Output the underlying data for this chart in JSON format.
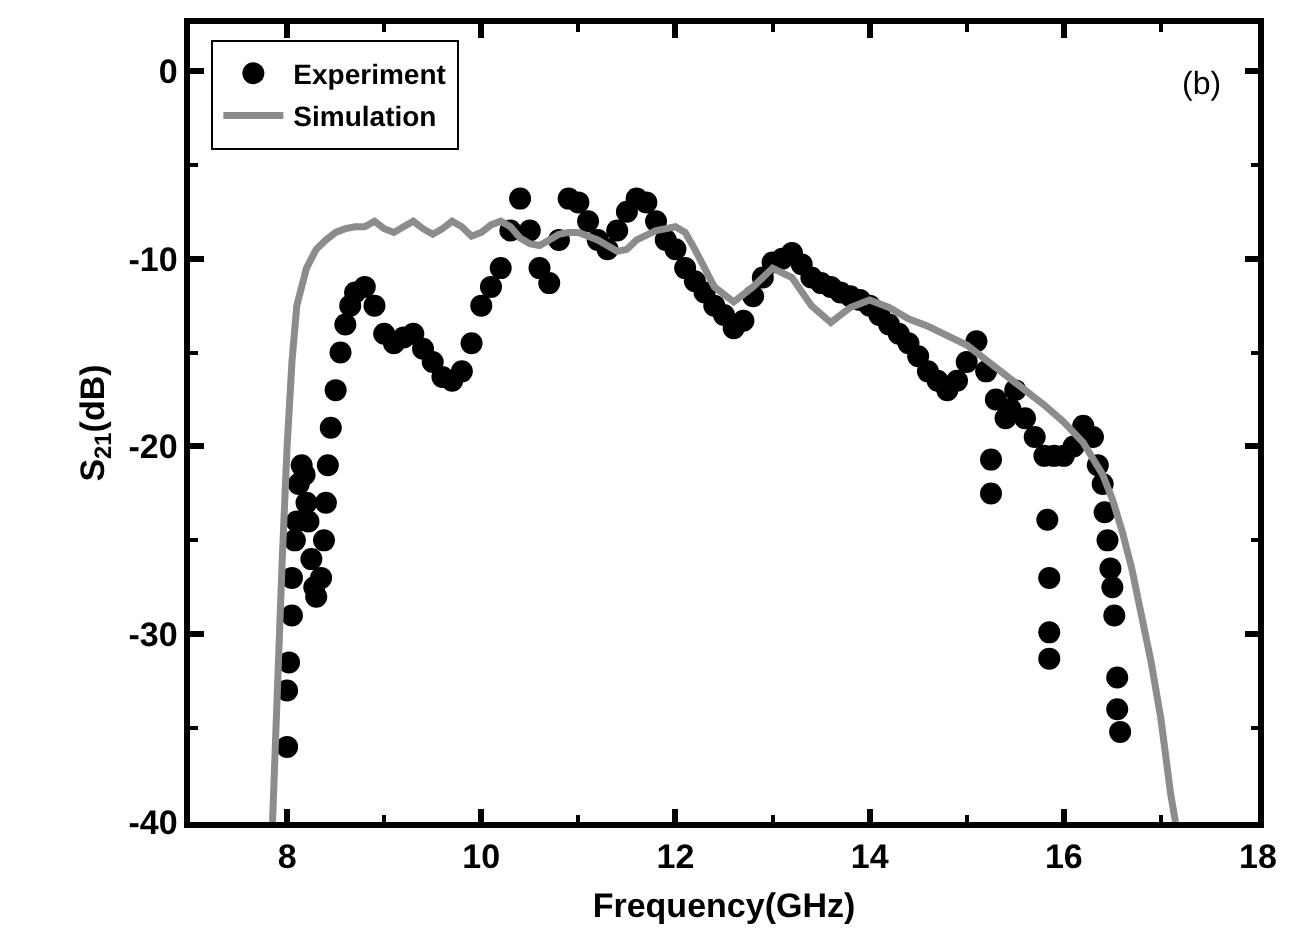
{
  "chart_data": {
    "type": "line",
    "xlabel": "Frequency(GHz)",
    "ylabel": "S$_{21}$(dB)",
    "annotations": [
      "(b)"
    ],
    "xlim": [
      7,
      18
    ],
    "xticks": [
      8,
      {
        "value": 9,
        "label": null
      },
      10,
      {
        "value": 11,
        "label": null
      },
      12,
      {
        "value": 13,
        "label": null
      },
      14,
      {
        "value": 15,
        "label": null
      },
      16,
      {
        "value": 17,
        "label": null
      },
      18
    ],
    "ylim": [
      -40,
      2.5
    ],
    "yticks": [
      -40,
      {
        "value": -35,
        "label": null
      },
      -30,
      {
        "value": -25,
        "label": null
      },
      -20,
      {
        "value": -15,
        "label": null
      },
      -10,
      {
        "value": -5,
        "label": null
      },
      0
    ],
    "legend": "top left",
    "series": [
      {
        "name": "Experiment",
        "type": "scatter",
        "marker": "circle",
        "color": "#000000",
        "x": [
          8.0,
          8.0,
          8.02,
          8.05,
          8.05,
          8.08,
          8.1,
          8.12,
          8.15,
          8.18,
          8.2,
          8.22,
          8.25,
          8.28,
          8.3,
          8.35,
          8.38,
          8.4,
          8.42,
          8.45,
          8.5,
          8.55,
          8.6,
          8.65,
          8.7,
          8.8,
          8.9,
          9.0,
          9.1,
          9.2,
          9.3,
          9.4,
          9.5,
          9.6,
          9.7,
          9.8,
          9.9,
          10.0,
          10.1,
          10.2,
          10.3,
          10.4,
          10.5,
          10.6,
          10.7,
          10.8,
          10.9,
          11.0,
          11.1,
          11.2,
          11.3,
          11.4,
          11.5,
          11.6,
          11.7,
          11.8,
          11.9,
          12.0,
          12.1,
          12.2,
          12.3,
          12.4,
          12.5,
          12.6,
          12.7,
          12.8,
          12.9,
          13.0,
          13.1,
          13.2,
          13.3,
          13.4,
          13.5,
          13.6,
          13.7,
          13.8,
          13.9,
          14.0,
          14.1,
          14.2,
          14.3,
          14.4,
          14.5,
          14.6,
          14.7,
          14.8,
          14.9,
          15.0,
          15.1,
          15.2,
          15.25,
          15.25,
          15.3,
          15.4,
          15.45,
          15.5,
          15.6,
          15.7,
          15.8,
          15.83,
          15.85,
          15.85,
          15.85,
          15.9,
          16.0,
          16.1,
          16.2,
          16.3,
          16.35,
          16.4,
          16.42,
          16.45,
          16.48,
          16.5,
          16.52,
          16.55,
          16.55,
          16.58
        ],
        "values": [
          -36,
          -33,
          -31.5,
          -29,
          -27,
          -25,
          -24,
          -22,
          -21,
          -21.5,
          -23,
          -24,
          -26,
          -27.5,
          -28,
          -27,
          -25,
          -23,
          -21,
          -19,
          -17,
          -15,
          -13.5,
          -12.5,
          -11.8,
          -11.5,
          -12.5,
          -14,
          -14.5,
          -14.2,
          -14,
          -14.8,
          -15.5,
          -16.3,
          -16.5,
          -16,
          -14.5,
          -12.5,
          -11.5,
          -10.5,
          -8.5,
          -6.8,
          -8.5,
          -10.5,
          -11.3,
          -9,
          -6.8,
          -7,
          -8,
          -9,
          -9.5,
          -8.5,
          -7.5,
          -6.8,
          -7,
          -8,
          -9,
          -9.5,
          -10.5,
          -11.2,
          -11.8,
          -12.5,
          -13,
          -13.7,
          -13.3,
          -12,
          -11,
          -10.2,
          -10,
          -9.7,
          -10.3,
          -11,
          -11.3,
          -11.5,
          -11.8,
          -12,
          -12.2,
          -12.5,
          -13,
          -13.5,
          -14,
          -14.5,
          -15.2,
          -16,
          -16.5,
          -17,
          -16.5,
          -15.5,
          -14.4,
          -16,
          -20.7,
          -22.5,
          -17.5,
          -18.5,
          -18,
          -17,
          -18.5,
          -19.5,
          -20.5,
          -23.9,
          -27,
          -29.9,
          -31.3,
          -20.5,
          -20.5,
          -20,
          -18.9,
          -19.5,
          -21,
          -22,
          -23.5,
          -25,
          -26.5,
          -27.5,
          -29,
          -32.3,
          -34,
          -35.2
        ]
      },
      {
        "name": "Simulation",
        "marker": "none",
        "line_style": "solid",
        "color": "#8c8c8c",
        "x": [
          7.85,
          7.9,
          7.95,
          8.0,
          8.05,
          8.1,
          8.2,
          8.3,
          8.4,
          8.5,
          8.6,
          8.7,
          8.8,
          8.9,
          9.0,
          9.1,
          9.2,
          9.3,
          9.4,
          9.5,
          9.6,
          9.7,
          9.8,
          9.9,
          10.0,
          10.1,
          10.2,
          10.3,
          10.4,
          10.5,
          10.6,
          10.7,
          10.8,
          10.9,
          11.0,
          11.2,
          11.4,
          11.5,
          11.6,
          11.8,
          12.0,
          12.1,
          12.2,
          12.4,
          12.6,
          12.8,
          13.0,
          13.2,
          13.4,
          13.6,
          13.8,
          14.0,
          14.2,
          14.4,
          14.6,
          14.8,
          15.0,
          15.2,
          15.4,
          15.6,
          15.8,
          16.0,
          16.2,
          16.4,
          16.5,
          16.6,
          16.7,
          16.8,
          16.9,
          17.0,
          17.05,
          17.1,
          17.15
        ],
        "values": [
          -40,
          -33,
          -26,
          -20,
          -15.5,
          -12.5,
          -10.5,
          -9.5,
          -9,
          -8.6,
          -8.4,
          -8.3,
          -8.3,
          -8.0,
          -8.4,
          -8.6,
          -8.3,
          -8.0,
          -8.4,
          -8.7,
          -8.4,
          -8.0,
          -8.3,
          -8.8,
          -8.6,
          -8.2,
          -8.0,
          -8.3,
          -8.9,
          -9.2,
          -9.3,
          -9.0,
          -8.7,
          -8.6,
          -8.6,
          -9.0,
          -9.6,
          -9.5,
          -9.0,
          -8.5,
          -8.3,
          -8.6,
          -9.5,
          -11.5,
          -12.3,
          -11.5,
          -10.5,
          -11,
          -12.5,
          -13.4,
          -12.6,
          -12.2,
          -12.6,
          -13.2,
          -13.6,
          -14.1,
          -14.6,
          -15.4,
          -16.2,
          -17,
          -17.8,
          -18.7,
          -19.8,
          -21.5,
          -22.8,
          -24.5,
          -26.5,
          -29,
          -31.5,
          -34.5,
          -36.5,
          -38.5,
          -40
        ]
      }
    ]
  }
}
